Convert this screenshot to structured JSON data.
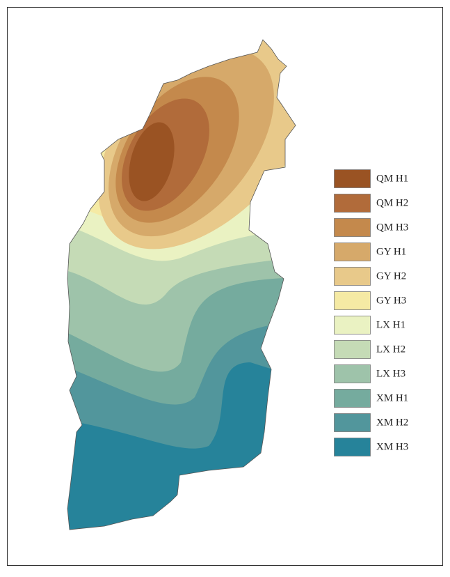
{
  "legend": {
    "items": [
      {
        "label": "QM H1",
        "color": "#9a5323"
      },
      {
        "label": "QM H2",
        "color": "#b16b3a"
      },
      {
        "label": "QM H3",
        "color": "#c4894c"
      },
      {
        "label": "GY H1",
        "color": "#d6a96a"
      },
      {
        "label": "GY H2",
        "color": "#e8c98a"
      },
      {
        "label": "GY H3",
        "color": "#f5eaa4"
      },
      {
        "label": "LX H1",
        "color": "#eaf2c2"
      },
      {
        "label": "LX H2",
        "color": "#c5dbb6"
      },
      {
        "label": "LX H3",
        "color": "#9ec3aa"
      },
      {
        "label": "XM H1",
        "color": "#75ab9e"
      },
      {
        "label": "XM H2",
        "color": "#52969c"
      },
      {
        "label": "XM H3",
        "color": "#26839a"
      }
    ]
  }
}
